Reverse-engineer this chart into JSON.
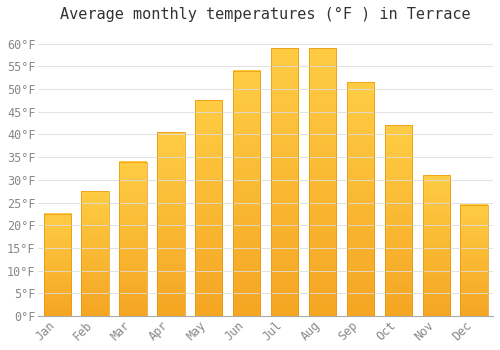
{
  "title": "Average monthly temperatures (°F ) in Terrace",
  "months": [
    "Jan",
    "Feb",
    "Mar",
    "Apr",
    "May",
    "Jun",
    "Jul",
    "Aug",
    "Sep",
    "Oct",
    "Nov",
    "Dec"
  ],
  "values": [
    22.5,
    27.5,
    34.0,
    40.5,
    47.5,
    54.0,
    59.0,
    59.0,
    51.5,
    42.0,
    31.0,
    24.5
  ],
  "bar_color_top": "#FFCC44",
  "bar_color_bottom": "#F5A623",
  "bar_edge_color": "#E8950A",
  "background_color": "#FFFFFF",
  "grid_color": "#DDDDDD",
  "ylim": [
    0,
    63
  ],
  "yticks": [
    0,
    5,
    10,
    15,
    20,
    25,
    30,
    35,
    40,
    45,
    50,
    55,
    60
  ],
  "title_fontsize": 11,
  "tick_fontsize": 8.5,
  "axis_label_color": "#888888",
  "title_color": "#333333"
}
